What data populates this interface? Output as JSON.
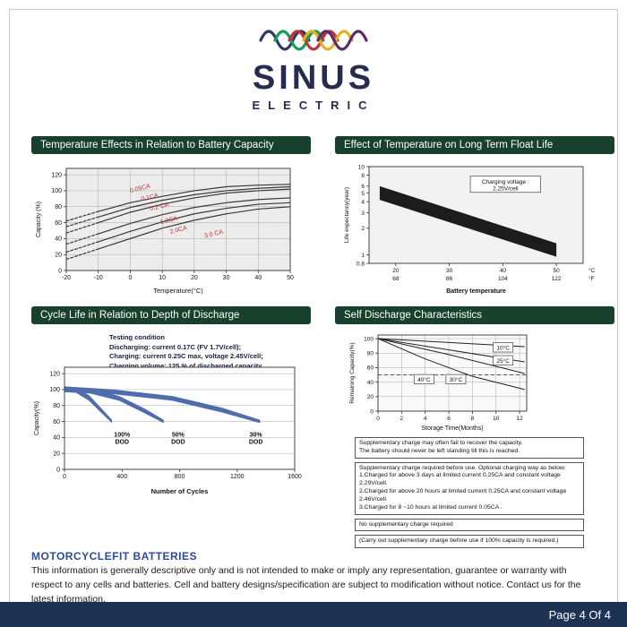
{
  "logo": {
    "brand": "SINUS",
    "sub": "ELECTRIC",
    "wave_colors": [
      "#2c3a68",
      "#159d57",
      "#c03434",
      "#e0b322",
      "#5d2a66"
    ]
  },
  "colors": {
    "header_green": "#17402d",
    "footer_navy": "#1e3253",
    "accent_blue": "#2b4b9b",
    "band_blue": "#4f6cad"
  },
  "bottom": {
    "heading": "MOTORCYCLEFIT  BATTERIES",
    "body": "This information is generally descriptive only and is not intended to make or imply any representation, guarantee or warranty with respect to any cells and batteries. Cell and battery designs/specification are subject to modification without notice. Contact us  for the latest information."
  },
  "footer": {
    "page_label": "Page 4 Of 4"
  },
  "chart_data": [
    {
      "type": "line",
      "title": "Temperature Effects in Relation to Battery Capacity",
      "xlabel": "Temperature(°C)",
      "ylabel": "Capacity (%)",
      "xlim": [
        -20,
        50
      ],
      "ylim": [
        0,
        128
      ],
      "xticks": [
        -20,
        -10,
        0,
        10,
        20,
        30,
        40,
        50
      ],
      "yticks": [
        0,
        20,
        40,
        60,
        80,
        100,
        120
      ],
      "grid": {
        "x": true,
        "y": true
      },
      "series": [
        {
          "name": "0.05CA",
          "color": "#3a3a3a",
          "width": 1.2,
          "dash_until": -10,
          "points": [
            [
              -20,
              62
            ],
            [
              -10,
              74
            ],
            [
              0,
              85
            ],
            [
              10,
              93
            ],
            [
              20,
              100
            ],
            [
              30,
              105
            ],
            [
              40,
              107
            ],
            [
              50,
              108
            ]
          ]
        },
        {
          "name": "0.1CA",
          "color": "#3a3a3a",
          "width": 1.2,
          "dash_until": -10,
          "points": [
            [
              -20,
              55
            ],
            [
              -10,
              67
            ],
            [
              0,
              79
            ],
            [
              10,
              88
            ],
            [
              20,
              95
            ],
            [
              30,
              100
            ],
            [
              40,
              103
            ],
            [
              50,
              105
            ]
          ]
        },
        {
          "name": "0.2CA",
          "color": "#3a3a3a",
          "width": 1.2,
          "dash_until": -10,
          "points": [
            [
              -20,
              47
            ],
            [
              -10,
              60
            ],
            [
              0,
              73
            ],
            [
              10,
              83
            ],
            [
              20,
              91
            ],
            [
              30,
              97
            ],
            [
              40,
              100
            ],
            [
              50,
              102
            ]
          ]
        },
        {
          "name": "1.0CA",
          "color": "#3a3a3a",
          "width": 1.2,
          "dash_until": -10,
          "points": [
            [
              -20,
              33
            ],
            [
              -10,
              46
            ],
            [
              0,
              59
            ],
            [
              10,
              70
            ],
            [
              20,
              79
            ],
            [
              30,
              85
            ],
            [
              40,
              89
            ],
            [
              50,
              91
            ]
          ]
        },
        {
          "name": "2.0CA",
          "color": "#3a3a3a",
          "width": 1.2,
          "dash_until": -10,
          "points": [
            [
              -20,
              23
            ],
            [
              -10,
              36
            ],
            [
              0,
              49
            ],
            [
              10,
              61
            ],
            [
              20,
              71
            ],
            [
              30,
              78
            ],
            [
              40,
              83
            ],
            [
              50,
              85
            ]
          ]
        },
        {
          "name": "3.0CA",
          "color": "#3a3a3a",
          "width": 1.2,
          "dash_until": -10,
          "points": [
            [
              -20,
              14
            ],
            [
              -10,
              27
            ],
            [
              0,
              40
            ],
            [
              10,
              53
            ],
            [
              20,
              63
            ],
            [
              30,
              71
            ],
            [
              40,
              77
            ],
            [
              50,
              80
            ]
          ]
        }
      ],
      "annotations": [
        {
          "x": 3,
          "y": 104,
          "text": "0.05CA",
          "color": "#c23333",
          "rotate": -14
        },
        {
          "x": 6,
          "y": 93,
          "text": "0.1CA",
          "color": "#c23333",
          "rotate": -14
        },
        {
          "x": 9,
          "y": 81,
          "text": "0.2 CA",
          "color": "#c23333",
          "rotate": -14
        },
        {
          "x": 12,
          "y": 64,
          "text": "1.0CA",
          "color": "#c23333",
          "rotate": -14
        },
        {
          "x": 15,
          "y": 52,
          "text": "2.0CA",
          "color": "#c23333",
          "rotate": -14
        },
        {
          "x": 26,
          "y": 47,
          "text": "3.0 CA",
          "color": "#c23333",
          "rotate": -14
        }
      ]
    },
    {
      "type": "band",
      "title": "Effect of Temperature on Long Term Float Life",
      "xlabel": "Battery temperature",
      "xlabel_bold": true,
      "ylabel": "Life expectancy(year)",
      "xlim": [
        15,
        55
      ],
      "ylim": [
        0.8,
        10
      ],
      "ylog": true,
      "xticks": [
        {
          "v": 20,
          "label": "20",
          "label2": "68"
        },
        {
          "v": 30,
          "label": "30",
          "label2": "86"
        },
        {
          "v": 40,
          "label": "40",
          "label2": "104"
        },
        {
          "v": 50,
          "label": "50",
          "label2": "122"
        }
      ],
      "unit_labels": [
        "°C",
        "°F"
      ],
      "yticks": [
        10,
        8,
        6,
        5,
        4,
        3,
        2,
        1,
        0.8
      ],
      "grid": {
        "x": false,
        "y": false
      },
      "series": [
        {
          "name": "float-life-band",
          "type": "band",
          "color": "#1c1c1c",
          "upper": [
            [
              17,
              6.0
            ],
            [
              50,
              1.35
            ]
          ],
          "lower": [
            [
              17,
              4.2
            ],
            [
              50,
              0.95
            ]
          ]
        }
      ],
      "annotations": [
        {
          "x": 40.5,
          "y": 6.3,
          "text": [
            "Charging voltage :",
            "2.25V/cell"
          ],
          "box": true,
          "fs": 6.5
        }
      ]
    },
    {
      "type": "area",
      "title": "Cycle Life in Relation to Depth of Discharge",
      "xlabel": "Number of Cycles",
      "xlabel_bold": true,
      "ylabel": "Capacity(%)",
      "xlim": [
        0,
        1600
      ],
      "ylim": [
        0,
        128
      ],
      "xticks": [
        0,
        400,
        800,
        1200,
        1600
      ],
      "yticks": [
        0,
        20,
        40,
        60,
        80,
        100,
        120
      ],
      "grid": {
        "x": false,
        "y": true
      },
      "testing_condition": [
        "Testing  condition",
        "Discharging: current 0.17C (FV 1.7V/cell);",
        "Charging: current 0.25C max, voltage 2.45V/cell;",
        "Charging volume: 125 % of discharged  capacity."
      ],
      "series": [
        {
          "name": "100% DOD",
          "type": "band",
          "color": "#4f6cad",
          "upper": [
            [
              0,
              104
            ],
            [
              80,
              102
            ],
            [
              170,
              93
            ],
            [
              260,
              76
            ],
            [
              330,
              62
            ]
          ],
          "lower": [
            [
              0,
              97
            ],
            [
              80,
              96
            ],
            [
              170,
              86
            ],
            [
              260,
              70
            ],
            [
              330,
              58
            ]
          ]
        },
        {
          "name": "50% DOD",
          "type": "band",
          "color": "#4f6cad",
          "upper": [
            [
              0,
              104
            ],
            [
              180,
              101
            ],
            [
              380,
              92
            ],
            [
              560,
              76
            ],
            [
              690,
              62
            ]
          ],
          "lower": [
            [
              0,
              97
            ],
            [
              180,
              95
            ],
            [
              380,
              86
            ],
            [
              560,
              70
            ],
            [
              690,
              58
            ]
          ]
        },
        {
          "name": "30% DOD",
          "type": "band",
          "color": "#4f6cad",
          "upper": [
            [
              0,
              104
            ],
            [
              350,
              100
            ],
            [
              750,
              92
            ],
            [
              1100,
              77
            ],
            [
              1360,
              62
            ]
          ],
          "lower": [
            [
              0,
              97
            ],
            [
              350,
              94
            ],
            [
              750,
              86
            ],
            [
              1100,
              71
            ],
            [
              1360,
              58
            ]
          ]
        }
      ],
      "annotations": [
        {
          "x": 400,
          "y": 40,
          "text": [
            "100%",
            "DOD"
          ],
          "bold": true
        },
        {
          "x": 790,
          "y": 40,
          "text": [
            "50%",
            "DOD"
          ],
          "bold": true
        },
        {
          "x": 1330,
          "y": 40,
          "text": [
            "30%",
            "DOD"
          ],
          "bold": true
        }
      ]
    },
    {
      "type": "line",
      "title": "Self Discharge Characteristics",
      "xlabel": "Storage Time(Months)",
      "ylabel": "Remaining Capacity(%)",
      "xlim": [
        0,
        12.6
      ],
      "ylim": [
        0,
        105
      ],
      "xticks": [
        0,
        2,
        4,
        6,
        8,
        10,
        12
      ],
      "yticks": [
        0,
        20,
        40,
        60,
        80,
        100
      ],
      "grid": {
        "x": true,
        "y": true
      },
      "series": [
        {
          "name": "10°C",
          "color": "#222222",
          "width": 1,
          "points": [
            [
              0,
              100
            ],
            [
              12.4,
              89
            ]
          ]
        },
        {
          "name": "25°C",
          "color": "#222222",
          "width": 1,
          "points": [
            [
              0,
              100
            ],
            [
              12.4,
              68
            ]
          ]
        },
        {
          "name": "30°C",
          "color": "#222222",
          "width": 1,
          "points": [
            [
              0,
              100
            ],
            [
              6,
              78
            ],
            [
              12.4,
              52
            ]
          ]
        },
        {
          "name": "40°C",
          "color": "#222222",
          "width": 1,
          "points": [
            [
              0,
              100
            ],
            [
              4,
              72
            ],
            [
              8,
              48
            ],
            [
              12.4,
              30
            ]
          ]
        },
        {
          "name": "recovery-limit",
          "color": "#444444",
          "width": 0.9,
          "dash": "4 3",
          "points": [
            [
              0,
              50
            ],
            [
              12.6,
              50
            ]
          ]
        }
      ],
      "annotations": [
        {
          "x": 10.6,
          "y": 88,
          "text": "10°C",
          "box": true,
          "fs": 6.5
        },
        {
          "x": 10.6,
          "y": 70,
          "text": "25°C",
          "box": true,
          "fs": 6.5
        },
        {
          "x": 3.9,
          "y": 44,
          "text": "40°C",
          "box": true,
          "fs": 6.5
        },
        {
          "x": 6.6,
          "y": 44,
          "text": "30°C",
          "box": true,
          "fs": 6.5
        }
      ],
      "notes": [
        [
          "Supplementary charge may often fail to recover the capacity.",
          "The battery should never be left standing till this is reached."
        ],
        [
          "Supplementary charge required before use. Optional charging way as below:",
          "1.Charged for above 3 days at limited current 0.25CA and constant voltage 2.29V/cell.",
          "2.Charged for above 20 hours at limited current 0.25CA and constant voltage 2.46V/cell.",
          "3.Charged for 8 ~10 hours at limited current 0.05CA ."
        ],
        [
          "No supplementary charge required"
        ],
        [
          "(Carry out supplementary charge before use if 100% capacity is required.)"
        ]
      ]
    }
  ]
}
